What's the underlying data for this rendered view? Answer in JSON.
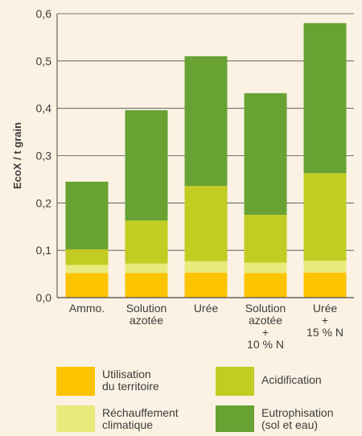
{
  "chart_data": {
    "type": "bar",
    "stacked": true,
    "ylabel": "EcoX / t grain",
    "ylim": [
      0,
      0.6
    ],
    "yticks": [
      "0,0",
      "0,1",
      "0,2",
      "0,3",
      "0,4",
      "0,5",
      "0,6"
    ],
    "grid": true,
    "categories": [
      [
        "Ammo."
      ],
      [
        "Solution",
        "azotée"
      ],
      [
        "Urée"
      ],
      [
        "Solution",
        "azotée",
        "+",
        "10 % N"
      ],
      [
        "Urée",
        "+",
        "15 % N"
      ]
    ],
    "series": [
      {
        "name": "Utilisation du territoire",
        "color": "#fcc400",
        "values": [
          0.052,
          0.052,
          0.053,
          0.052,
          0.053
        ]
      },
      {
        "name": "Réchauffement climatique",
        "color": "#eaea7c",
        "values": [
          0.017,
          0.02,
          0.024,
          0.022,
          0.025
        ]
      },
      {
        "name": "Acidification",
        "color": "#c2cc22",
        "values": [
          0.033,
          0.091,
          0.159,
          0.101,
          0.185
        ]
      },
      {
        "name": "Eutrophisation (sol et eau)",
        "color": "#67a233",
        "values": [
          0.143,
          0.233,
          0.274,
          0.257,
          0.317
        ]
      }
    ],
    "legend": {
      "placement": "bottom",
      "items": [
        {
          "lines": [
            "Utilisation",
            "du territoire"
          ],
          "color": "#fcc400"
        },
        {
          "lines": [
            "Acidification"
          ],
          "color": "#c2cc22"
        },
        {
          "lines": [
            "Réchauffement",
            "climatique"
          ],
          "color": "#eaea7c"
        },
        {
          "lines": [
            "Eutrophisation",
            "(sol et eau)"
          ],
          "color": "#67a233"
        }
      ]
    }
  }
}
